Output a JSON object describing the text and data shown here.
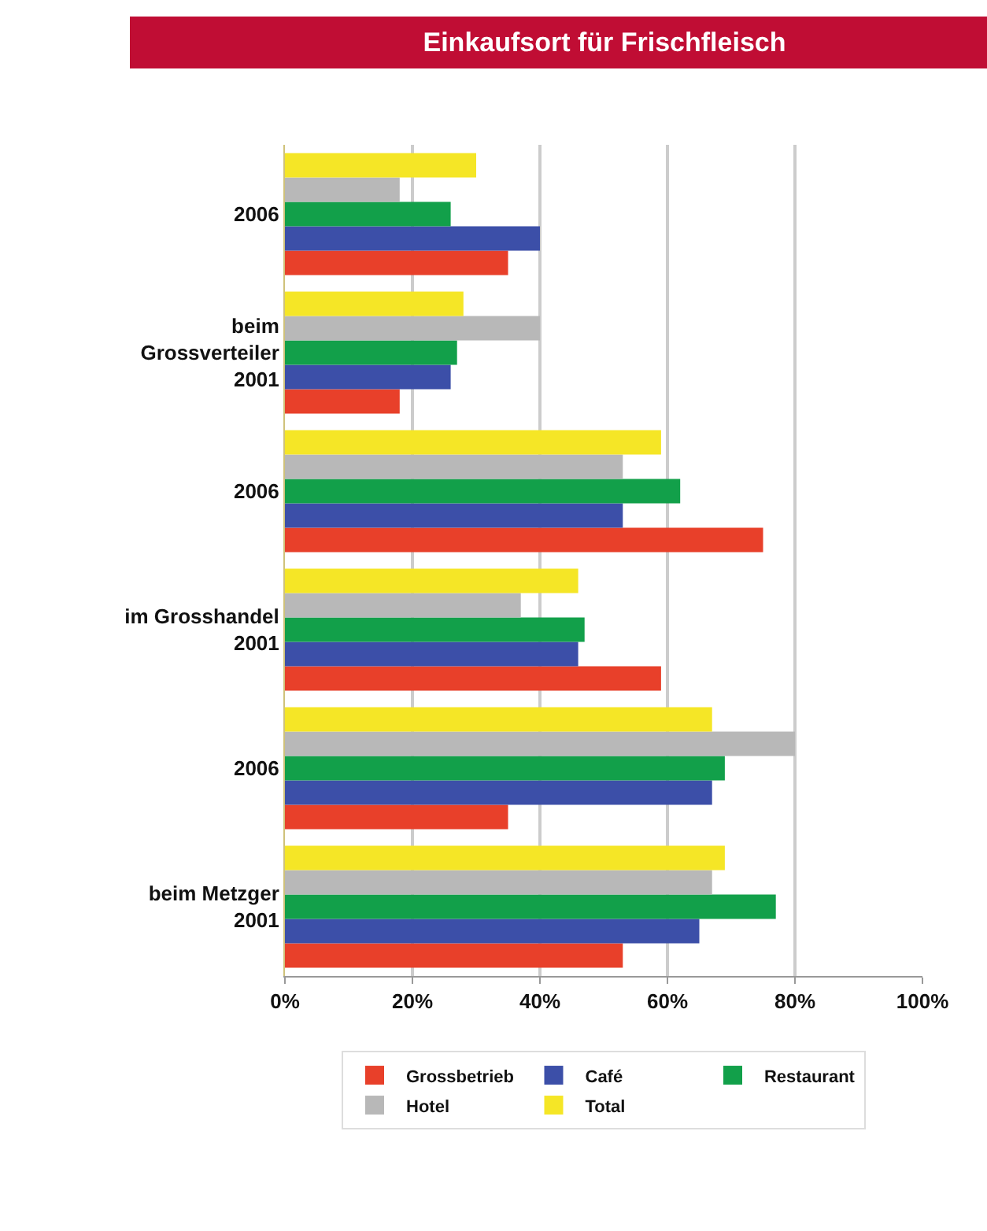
{
  "chart_data": {
    "type": "bar",
    "orientation": "horizontal",
    "title": "Einkaufsort für Frischfleisch",
    "categories": [
      "2006",
      "beim\nGrossverteiler\n2001",
      "2006",
      "im Grosshandel\n2001",
      "2006",
      "beim Metzger\n2001"
    ],
    "series": [
      {
        "name": "Grossbetrieb",
        "color": "#e8402a",
        "values": [
          35,
          18,
          75,
          59,
          35,
          53
        ]
      },
      {
        "name": "Café",
        "color": "#3c4fa8",
        "values": [
          40,
          26,
          53,
          46,
          67,
          65
        ]
      },
      {
        "name": "Restaurant",
        "color": "#12a04a",
        "values": [
          26,
          27,
          62,
          47,
          69,
          77
        ]
      },
      {
        "name": "Hotel",
        "color": "#b8b8b8",
        "values": [
          18,
          40,
          53,
          37,
          80,
          67
        ]
      },
      {
        "name": "Total",
        "color": "#f5e626",
        "values": [
          30,
          28,
          59,
          46,
          67,
          69
        ]
      }
    ],
    "xlim": [
      0,
      100
    ],
    "xticks": [
      {
        "value": 0,
        "label": "0%"
      },
      {
        "value": 20,
        "label": "20%"
      },
      {
        "value": 40,
        "label": "40%"
      },
      {
        "value": 60,
        "label": "60%"
      },
      {
        "value": 80,
        "label": "80%"
      },
      {
        "value": 100,
        "label": "100%"
      }
    ],
    "grid": "x",
    "legend": "bottom"
  }
}
